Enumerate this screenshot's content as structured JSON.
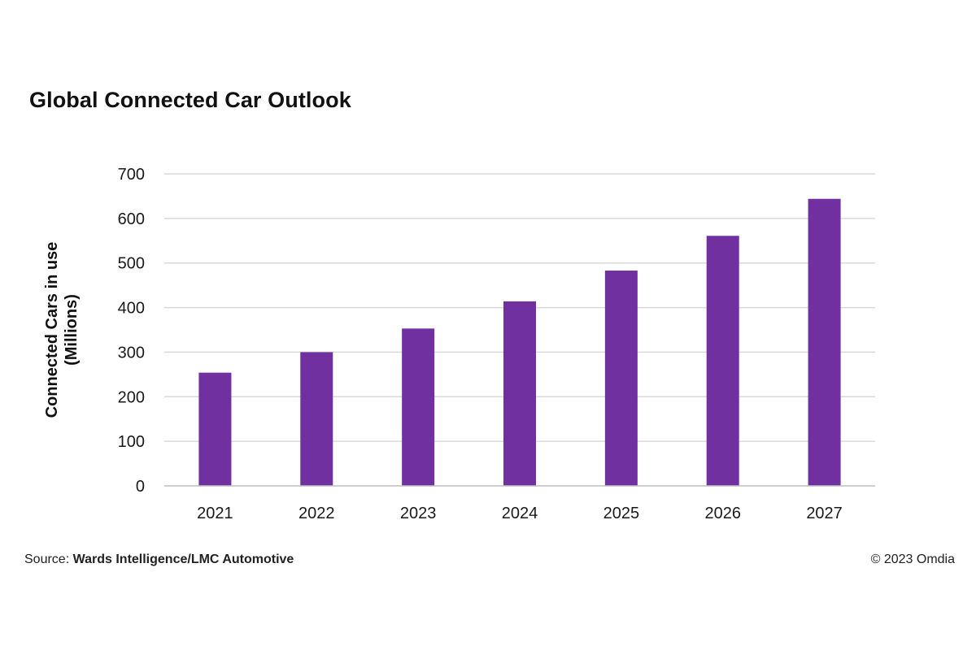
{
  "chart_data": {
    "type": "bar",
    "title": "Global Connected Car Outlook",
    "xlabel": "",
    "ylabel": [
      "Connected Cars in use",
      "(Millions)"
    ],
    "categories": [
      "2021",
      "2022",
      "2023",
      "2024",
      "2025",
      "2026",
      "2027"
    ],
    "values": [
      254,
      300,
      353,
      414,
      483,
      561,
      644
    ],
    "ylim": [
      0,
      700
    ],
    "yticks": [
      0,
      100,
      200,
      300,
      400,
      500,
      600,
      700
    ],
    "grid": true,
    "bar_color": "#7030a0",
    "grid_color": "#d9d9d9",
    "axis_color": "#bfbfbf"
  },
  "footer": {
    "source_prefix": "Source:",
    "source_name": "Wards Intelligence/LMC Automotive",
    "copyright": "© 2023 Omdia"
  }
}
